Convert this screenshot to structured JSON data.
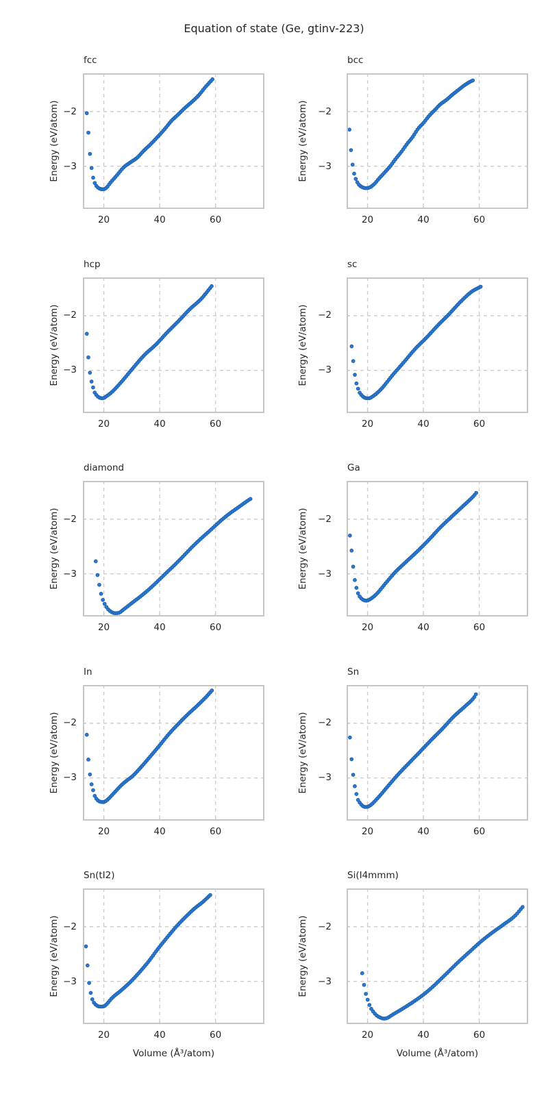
{
  "figure": {
    "title": "Equation of state (Ge, gtinv-223)",
    "xlabel": "Volume (Å³/atom)",
    "ylabel": "Energy (eV/atom)"
  },
  "axes": {
    "xlim": [
      12.5,
      77.5
    ],
    "ylim": [
      -3.78,
      -1.3
    ],
    "x_ticks": [
      20,
      40,
      60
    ],
    "y_ticks": [
      -2,
      -3
    ],
    "x_tick_labels": [
      "20",
      "40",
      "60"
    ],
    "y_tick_labels": [
      "−2",
      "−3"
    ],
    "grid": "dashed",
    "legend": "none"
  },
  "colors": {
    "marker_fill": "#2a79d2",
    "marker_edge": "#1b5fa9",
    "grid": "#cdcdcd",
    "spine": "#c6c6c6",
    "text": "#262626"
  },
  "chart_data": [
    {
      "type": "scatter",
      "title": "fcc",
      "approx_point_count": 80,
      "points": [
        [
          13.9,
          -2.03
        ],
        [
          14.6,
          -2.47
        ],
        [
          15.1,
          -2.81
        ],
        [
          15.6,
          -3.03
        ],
        [
          16.1,
          -3.19
        ],
        [
          16.7,
          -3.3
        ],
        [
          17.5,
          -3.37
        ],
        [
          18.5,
          -3.41
        ],
        [
          19.8,
          -3.42
        ],
        [
          21.0,
          -3.39
        ],
        [
          22.2,
          -3.31
        ],
        [
          24.6,
          -3.17
        ],
        [
          27.1,
          -3.02
        ],
        [
          29.5,
          -2.93
        ],
        [
          32.0,
          -2.84
        ],
        [
          34.4,
          -2.71
        ],
        [
          36.9,
          -2.59
        ],
        [
          39.3,
          -2.46
        ],
        [
          41.8,
          -2.32
        ],
        [
          44.2,
          -2.17
        ],
        [
          46.7,
          -2.05
        ],
        [
          49.1,
          -1.93
        ],
        [
          51.6,
          -1.82
        ],
        [
          54.0,
          -1.7
        ],
        [
          56.4,
          -1.55
        ],
        [
          58.9,
          -1.41
        ]
      ]
    },
    {
      "type": "scatter",
      "title": "bcc",
      "approx_point_count": 79,
      "points": [
        [
          13.5,
          -2.33
        ],
        [
          14.2,
          -2.78
        ],
        [
          14.9,
          -3.06
        ],
        [
          15.5,
          -3.19
        ],
        [
          16.2,
          -3.28
        ],
        [
          16.8,
          -3.33
        ],
        [
          18.0,
          -3.38
        ],
        [
          19.6,
          -3.4
        ],
        [
          21.0,
          -3.38
        ],
        [
          22.5,
          -3.32
        ],
        [
          24.0,
          -3.23
        ],
        [
          26.0,
          -3.12
        ],
        [
          28.1,
          -3.0
        ],
        [
          30.0,
          -2.87
        ],
        [
          32.2,
          -2.73
        ],
        [
          34.0,
          -2.6
        ],
        [
          36.2,
          -2.46
        ],
        [
          38.0,
          -2.32
        ],
        [
          40.3,
          -2.19
        ],
        [
          42.0,
          -2.08
        ],
        [
          44.3,
          -1.96
        ],
        [
          46.0,
          -1.87
        ],
        [
          48.4,
          -1.78
        ],
        [
          50.4,
          -1.69
        ],
        [
          52.4,
          -1.61
        ],
        [
          54.4,
          -1.53
        ],
        [
          56.5,
          -1.46
        ],
        [
          57.7,
          -1.43
        ]
      ]
    },
    {
      "type": "scatter",
      "title": "hcp",
      "approx_point_count": 80,
      "points": [
        [
          13.9,
          -2.33
        ],
        [
          14.4,
          -2.72
        ],
        [
          14.9,
          -2.99
        ],
        [
          15.5,
          -3.18
        ],
        [
          16.1,
          -3.3
        ],
        [
          16.6,
          -3.39
        ],
        [
          17.5,
          -3.46
        ],
        [
          18.5,
          -3.5
        ],
        [
          19.6,
          -3.51
        ],
        [
          21.0,
          -3.47
        ],
        [
          23.0,
          -3.39
        ],
        [
          26.3,
          -3.21
        ],
        [
          30.4,
          -2.96
        ],
        [
          34.5,
          -2.72
        ],
        [
          38.6,
          -2.53
        ],
        [
          42.6,
          -2.31
        ],
        [
          46.7,
          -2.1
        ],
        [
          50.8,
          -1.88
        ],
        [
          54.9,
          -1.69
        ],
        [
          58.6,
          -1.46
        ]
      ]
    },
    {
      "type": "scatter",
      "title": "sc",
      "approx_point_count": 81,
      "points": [
        [
          14.3,
          -2.56
        ],
        [
          14.9,
          -2.84
        ],
        [
          15.4,
          -3.06
        ],
        [
          15.9,
          -3.21
        ],
        [
          16.4,
          -3.3
        ],
        [
          17.0,
          -3.39
        ],
        [
          18.0,
          -3.46
        ],
        [
          19.0,
          -3.5
        ],
        [
          20.4,
          -3.51
        ],
        [
          22.0,
          -3.47
        ],
        [
          24.9,
          -3.34
        ],
        [
          28.9,
          -3.09
        ],
        [
          33.0,
          -2.85
        ],
        [
          37.0,
          -2.61
        ],
        [
          41.1,
          -2.4
        ],
        [
          45.1,
          -2.18
        ],
        [
          49.2,
          -1.97
        ],
        [
          53.2,
          -1.75
        ],
        [
          57.3,
          -1.56
        ],
        [
          60.5,
          -1.47
        ]
      ]
    },
    {
      "type": "scatter",
      "title": "diamond",
      "approx_point_count": 88,
      "points": [
        [
          17.1,
          -2.77
        ],
        [
          17.7,
          -3.01
        ],
        [
          18.3,
          -3.18
        ],
        [
          18.9,
          -3.34
        ],
        [
          19.6,
          -3.47
        ],
        [
          20.4,
          -3.56
        ],
        [
          21.4,
          -3.64
        ],
        [
          22.5,
          -3.69
        ],
        [
          23.9,
          -3.72
        ],
        [
          25.5,
          -3.71
        ],
        [
          27.1,
          -3.65
        ],
        [
          30.4,
          -3.52
        ],
        [
          33.7,
          -3.39
        ],
        [
          36.9,
          -3.25
        ],
        [
          40.2,
          -3.09
        ],
        [
          42.2,
          -2.99
        ],
        [
          45.1,
          -2.85
        ],
        [
          48.4,
          -2.68
        ],
        [
          51.6,
          -2.51
        ],
        [
          54.9,
          -2.35
        ],
        [
          58.2,
          -2.2
        ],
        [
          61.4,
          -2.05
        ],
        [
          64.7,
          -1.91
        ],
        [
          68.0,
          -1.79
        ],
        [
          71.3,
          -1.67
        ],
        [
          72.5,
          -1.63
        ]
      ]
    },
    {
      "type": "scatter",
      "title": "Ga",
      "approx_point_count": 79,
      "points": [
        [
          13.7,
          -2.3
        ],
        [
          14.6,
          -2.73
        ],
        [
          15.1,
          -2.99
        ],
        [
          15.6,
          -3.16
        ],
        [
          16.2,
          -3.29
        ],
        [
          16.8,
          -3.38
        ],
        [
          18.0,
          -3.46
        ],
        [
          19.6,
          -3.49
        ],
        [
          21.0,
          -3.46
        ],
        [
          23.2,
          -3.37
        ],
        [
          26.5,
          -3.17
        ],
        [
          29.7,
          -2.98
        ],
        [
          33.8,
          -2.78
        ],
        [
          37.8,
          -2.59
        ],
        [
          41.9,
          -2.38
        ],
        [
          45.9,
          -2.16
        ],
        [
          50.0,
          -1.96
        ],
        [
          54.0,
          -1.77
        ],
        [
          58.1,
          -1.57
        ],
        [
          58.9,
          -1.52
        ]
      ]
    },
    {
      "type": "scatter",
      "title": "In",
      "approx_point_count": 80,
      "points": [
        [
          13.9,
          -2.21
        ],
        [
          14.4,
          -2.62
        ],
        [
          14.9,
          -2.88
        ],
        [
          15.5,
          -3.09
        ],
        [
          16.1,
          -3.21
        ],
        [
          16.6,
          -3.31
        ],
        [
          17.5,
          -3.39
        ],
        [
          18.5,
          -3.43
        ],
        [
          19.8,
          -3.44
        ],
        [
          21.0,
          -3.41
        ],
        [
          23.0,
          -3.31
        ],
        [
          26.3,
          -3.13
        ],
        [
          27.9,
          -3.06
        ],
        [
          30.4,
          -2.96
        ],
        [
          33.7,
          -2.78
        ],
        [
          36.9,
          -2.59
        ],
        [
          40.2,
          -2.39
        ],
        [
          43.4,
          -2.19
        ],
        [
          46.7,
          -2.01
        ],
        [
          50.0,
          -1.84
        ],
        [
          53.2,
          -1.69
        ],
        [
          56.4,
          -1.53
        ],
        [
          58.7,
          -1.4
        ]
      ]
    },
    {
      "type": "scatter",
      "title": "Sn",
      "approx_point_count": 79,
      "points": [
        [
          13.7,
          -2.26
        ],
        [
          14.3,
          -2.67
        ],
        [
          14.9,
          -2.96
        ],
        [
          15.4,
          -3.14
        ],
        [
          16.0,
          -3.29
        ],
        [
          16.5,
          -3.39
        ],
        [
          17.5,
          -3.47
        ],
        [
          18.5,
          -3.52
        ],
        [
          19.6,
          -3.53
        ],
        [
          21.0,
          -3.5
        ],
        [
          23.6,
          -3.37
        ],
        [
          27.3,
          -3.15
        ],
        [
          30.5,
          -2.96
        ],
        [
          34.6,
          -2.74
        ],
        [
          38.6,
          -2.53
        ],
        [
          42.7,
          -2.31
        ],
        [
          46.8,
          -2.1
        ],
        [
          50.8,
          -1.88
        ],
        [
          54.9,
          -1.69
        ],
        [
          58.1,
          -1.53
        ],
        [
          58.8,
          -1.47
        ]
      ]
    },
    {
      "type": "scatter",
      "title": "Sn(tI2)",
      "approx_point_count": 79,
      "points": [
        [
          13.6,
          -2.36
        ],
        [
          14.4,
          -2.84
        ],
        [
          14.9,
          -3.1
        ],
        [
          15.4,
          -3.23
        ],
        [
          15.9,
          -3.33
        ],
        [
          16.6,
          -3.4
        ],
        [
          17.5,
          -3.44
        ],
        [
          18.5,
          -3.46
        ],
        [
          19.3,
          -3.46
        ],
        [
          20.5,
          -3.44
        ],
        [
          23.0,
          -3.3
        ],
        [
          26.3,
          -3.16
        ],
        [
          29.5,
          -3.01
        ],
        [
          32.8,
          -2.83
        ],
        [
          36.1,
          -2.63
        ],
        [
          39.3,
          -2.41
        ],
        [
          42.6,
          -2.2
        ],
        [
          45.9,
          -2.0
        ],
        [
          49.1,
          -1.83
        ],
        [
          52.4,
          -1.67
        ],
        [
          55.6,
          -1.54
        ],
        [
          58.1,
          -1.42
        ]
      ]
    },
    {
      "type": "scatter",
      "title": "Si(I4mmm)",
      "approx_point_count": 90,
      "points": [
        [
          18.1,
          -2.85
        ],
        [
          18.8,
          -3.08
        ],
        [
          19.4,
          -3.23
        ],
        [
          20.2,
          -3.36
        ],
        [
          21.0,
          -3.47
        ],
        [
          22.0,
          -3.55
        ],
        [
          23.2,
          -3.62
        ],
        [
          24.5,
          -3.66
        ],
        [
          25.7,
          -3.68
        ],
        [
          27.0,
          -3.67
        ],
        [
          28.9,
          -3.61
        ],
        [
          32.2,
          -3.51
        ],
        [
          36.2,
          -3.38
        ],
        [
          40.3,
          -3.23
        ],
        [
          43.5,
          -3.09
        ],
        [
          48.4,
          -2.85
        ],
        [
          52.4,
          -2.65
        ],
        [
          56.5,
          -2.46
        ],
        [
          60.6,
          -2.27
        ],
        [
          64.6,
          -2.11
        ],
        [
          68.7,
          -1.96
        ],
        [
          72.8,
          -1.8
        ],
        [
          75.5,
          -1.64
        ]
      ]
    }
  ]
}
